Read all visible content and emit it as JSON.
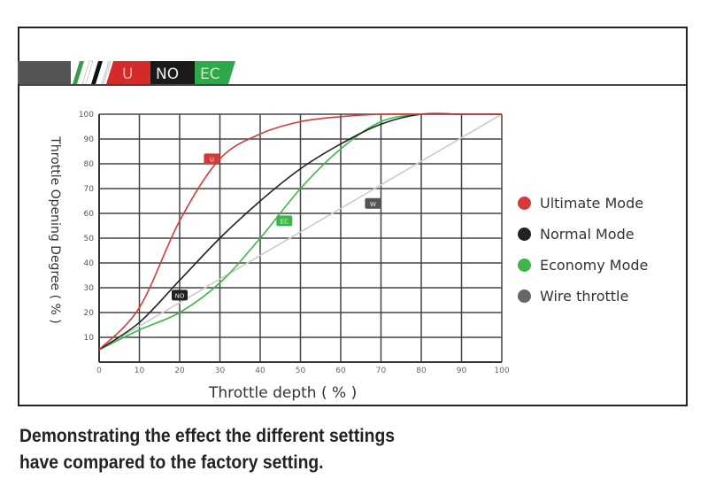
{
  "banner": {
    "labels": [
      "U",
      "NO",
      "EC"
    ],
    "colors": {
      "U": "#d42a2a",
      "NO": "#1a1a1a",
      "EC": "#2fa84a"
    }
  },
  "caption": [
    "Demonstrating the effect the different settings",
    "have compared to the factory setting."
  ],
  "chart_data": {
    "type": "line",
    "title": "",
    "xlabel": "Throttle depth ( % )",
    "ylabel": "Throttle Opening Degree ( % )",
    "xlim": [
      0,
      100
    ],
    "ylim": [
      0,
      100
    ],
    "xticks": [
      0,
      10,
      20,
      30,
      40,
      50,
      60,
      70,
      80,
      90,
      100
    ],
    "yticks": [
      10,
      20,
      30,
      40,
      50,
      60,
      70,
      80,
      90,
      100
    ],
    "grid": true,
    "legend_placement": "right",
    "x": [
      0,
      10,
      20,
      30,
      40,
      50,
      60,
      70,
      80,
      90,
      100
    ],
    "series": [
      {
        "name": "Ultimate Mode",
        "marker_label": "U",
        "color": "#d43a3a",
        "values": [
          5,
          22,
          57,
          82,
          92,
          97,
          99,
          100,
          100,
          100,
          100
        ],
        "marker_at": [
          28,
          82
        ]
      },
      {
        "name": "Normal Mode",
        "marker_label": "NO",
        "color": "#222222",
        "values": [
          5,
          16,
          33,
          50,
          65,
          78,
          88,
          96,
          100,
          100,
          100
        ],
        "marker_at": [
          20,
          27
        ]
      },
      {
        "name": "Economy Mode",
        "marker_label": "EC",
        "color": "#3cb84a",
        "values": [
          5,
          13,
          20,
          32,
          50,
          70,
          86,
          97,
          100,
          100,
          100
        ],
        "marker_at": [
          46,
          57
        ]
      },
      {
        "name": "Wire throttle",
        "marker_label": "W",
        "color": "#cccccc",
        "values": [
          5,
          14.5,
          24,
          33.5,
          43,
          52.5,
          62,
          71.5,
          81,
          90.5,
          100
        ],
        "marker_at": [
          68,
          64
        ],
        "legend_color": "#666666"
      }
    ]
  }
}
